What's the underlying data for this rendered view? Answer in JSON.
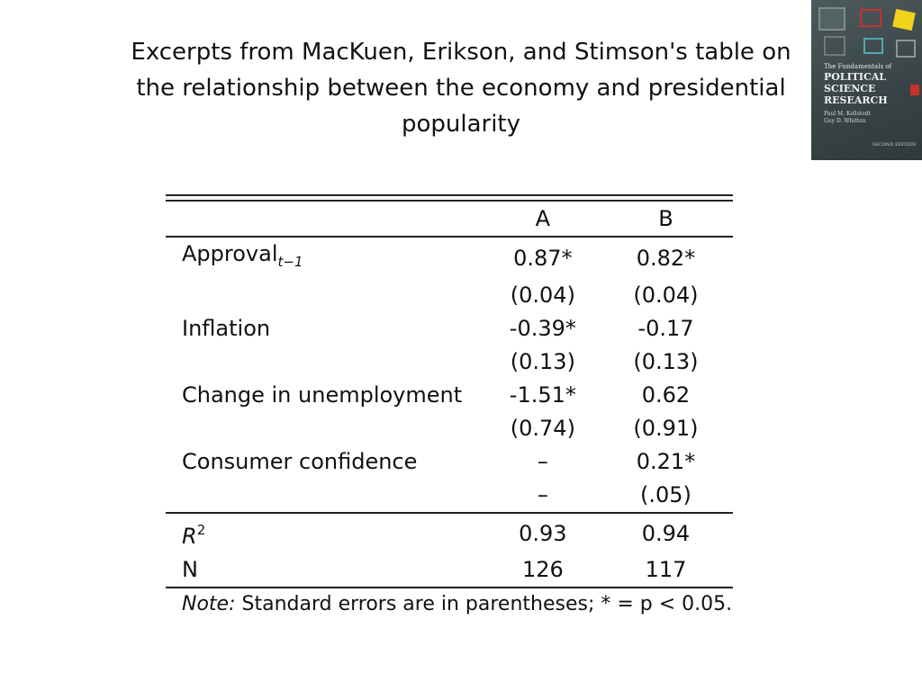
{
  "slide": {
    "title_lines": [
      "Excerpts from MacKuen, Erikson, and Stimson's table on",
      "the relationship between the economy and presidential",
      "popularity"
    ]
  },
  "book_cover": {
    "pre_title": "The Fundamentals of",
    "title_lines": [
      "POLITICAL",
      "SCIENCE",
      "RESEARCH"
    ],
    "authors": [
      "Paul M. Kellstedt",
      "Guy D. Whitten"
    ],
    "edition": "SECOND EDITION"
  },
  "table": {
    "columns": [
      "A",
      "B"
    ],
    "rows": [
      {
        "label": "Approval",
        "label_sub": "t−1",
        "a": "0.87*",
        "b": "0.82*"
      },
      {
        "label": "",
        "a": "(0.04)",
        "b": "(0.04)"
      },
      {
        "label": "Inflation",
        "a": "-0.39*",
        "b": "-0.17"
      },
      {
        "label": "",
        "a": "(0.13)",
        "b": "(0.13)"
      },
      {
        "label": "Change in unemployment",
        "a": "-1.51*",
        "b": "0.62"
      },
      {
        "label": "",
        "a": "(0.74)",
        "b": "(0.91)"
      },
      {
        "label": "Consumer confidence",
        "a": "–",
        "b": "0.21*"
      },
      {
        "label": "",
        "a": "–",
        "b": "(.05)"
      }
    ],
    "fit_rows": [
      {
        "label": "R",
        "label_sup": "2",
        "a": "0.93",
        "b": "0.94"
      },
      {
        "label": "N",
        "a": "126",
        "b": "117"
      }
    ],
    "note_label": "Note:",
    "note_text": " Standard errors are in parentheses; * = p < 0.05."
  },
  "colors": {
    "cover_bg": "#3a4547",
    "cover_red": "#c8312c",
    "cover_yellow": "#f0d21c",
    "cover_teal": "#4fa9b0"
  }
}
